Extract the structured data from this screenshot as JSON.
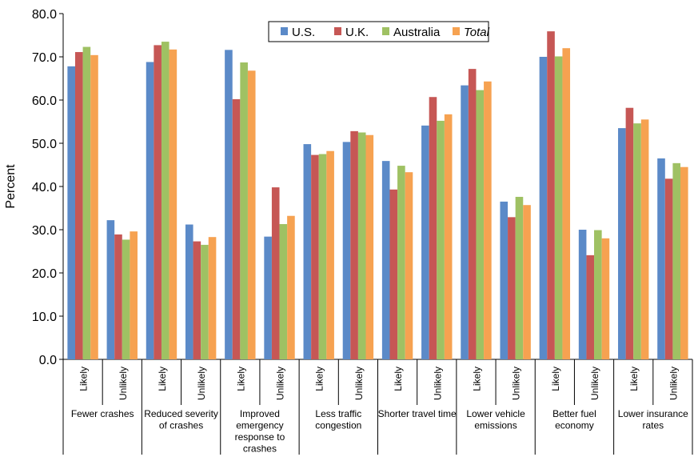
{
  "chart_data": {
    "type": "bar",
    "title": "",
    "ylabel": "Percent",
    "xlabel": "",
    "ylim": [
      0,
      80
    ],
    "yticks": [
      "0.0",
      "10.0",
      "20.0",
      "30.0",
      "40.0",
      "50.0",
      "60.0",
      "70.0",
      "80.0"
    ],
    "grid": false,
    "legend_position": "top-center",
    "series": [
      {
        "name": "U.S.",
        "color": "#5b8ac8",
        "italic": false,
        "values": [
          67.8,
          32.2,
          68.8,
          31.2,
          71.6,
          28.4,
          49.8,
          50.3,
          45.9,
          54.1,
          63.4,
          36.5,
          70.0,
          30.0,
          53.5,
          46.5
        ]
      },
      {
        "name": "U.K.",
        "color": "#c65755",
        "italic": false,
        "values": [
          71.1,
          28.9,
          72.7,
          27.3,
          60.2,
          39.8,
          47.3,
          52.8,
          39.3,
          60.7,
          67.2,
          32.9,
          75.9,
          24.1,
          58.2,
          41.8
        ]
      },
      {
        "name": "Australia",
        "color": "#9fc163",
        "italic": false,
        "values": [
          72.3,
          27.7,
          73.5,
          26.5,
          68.7,
          31.3,
          47.5,
          52.5,
          44.8,
          55.2,
          62.3,
          37.6,
          70.1,
          29.9,
          54.6,
          45.4
        ]
      },
      {
        "name": "Total",
        "color": "#f6a251",
        "italic": true,
        "values": [
          70.4,
          29.6,
          71.7,
          28.3,
          66.8,
          33.2,
          48.2,
          51.9,
          43.3,
          56.7,
          64.3,
          35.7,
          72.0,
          28.0,
          55.5,
          44.5
        ]
      }
    ],
    "categories": [
      "Likely",
      "Unlikely",
      "Likely",
      "Unlikely",
      "Likely",
      "Unlikely",
      "Likely",
      "Unlikely",
      "Likely",
      "Unlikely",
      "Likely",
      "Unlikely",
      "Likely",
      "Unlikely",
      "Likely",
      "Unlikely"
    ],
    "groups": [
      {
        "label": [
          "Fewer crashes"
        ]
      },
      {
        "label": [
          "Reduced severity",
          "of crashes"
        ]
      },
      {
        "label": [
          "Improved",
          "emergency",
          "response to",
          "crashes"
        ]
      },
      {
        "label": [
          "Less traffic",
          "congestion"
        ]
      },
      {
        "label": [
          "Shorter travel time"
        ]
      },
      {
        "label": [
          "Lower vehicle",
          "emissions"
        ]
      },
      {
        "label": [
          "Better fuel",
          "economy"
        ]
      },
      {
        "label": [
          "Lower insurance",
          "rates"
        ]
      }
    ]
  }
}
